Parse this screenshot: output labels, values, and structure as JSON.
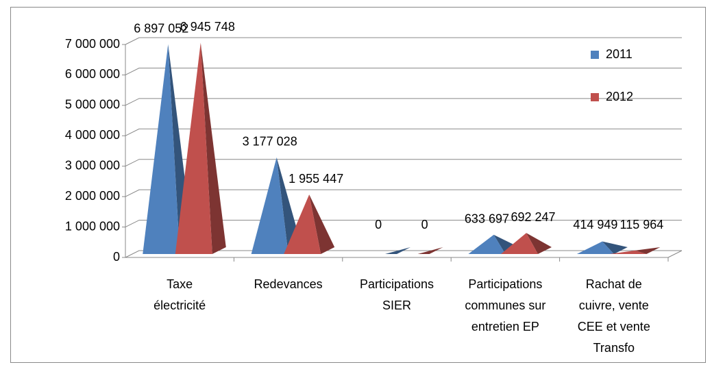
{
  "chart_data": {
    "type": "pyramid3d",
    "categories": [
      "Taxe électricité",
      "Redevances",
      "Participations SIER",
      "Participations communes sur entretien EP",
      "Rachat de cuivre, vente CEE et vente Transfo"
    ],
    "series": [
      {
        "name": "2011",
        "color": "#4f81bd",
        "values": [
          6897052,
          3177028,
          0,
          633697,
          414949
        ],
        "value_labels": [
          "6 897 052",
          "3 177 028",
          "0",
          "633 697",
          "414 949"
        ]
      },
      {
        "name": "2012",
        "color": "#c0504d",
        "values": [
          6945748,
          1955447,
          0,
          692247,
          115964
        ],
        "value_labels": [
          "6 945 748",
          "1 955 447",
          "0",
          "692 247",
          "115 964"
        ]
      }
    ],
    "ylim": [
      0,
      7000000
    ],
    "yticks": [
      {
        "value": 0,
        "label": "0"
      },
      {
        "value": 1000000,
        "label": "1 000 000"
      },
      {
        "value": 2000000,
        "label": "2 000 000"
      },
      {
        "value": 3000000,
        "label": "3 000 000"
      },
      {
        "value": 4000000,
        "label": "4 000 000"
      },
      {
        "value": 5000000,
        "label": "5 000 000"
      },
      {
        "value": 6000000,
        "label": "6 000 000"
      },
      {
        "value": 7000000,
        "label": "7 000 000"
      }
    ],
    "grid": true,
    "legend": "right"
  }
}
